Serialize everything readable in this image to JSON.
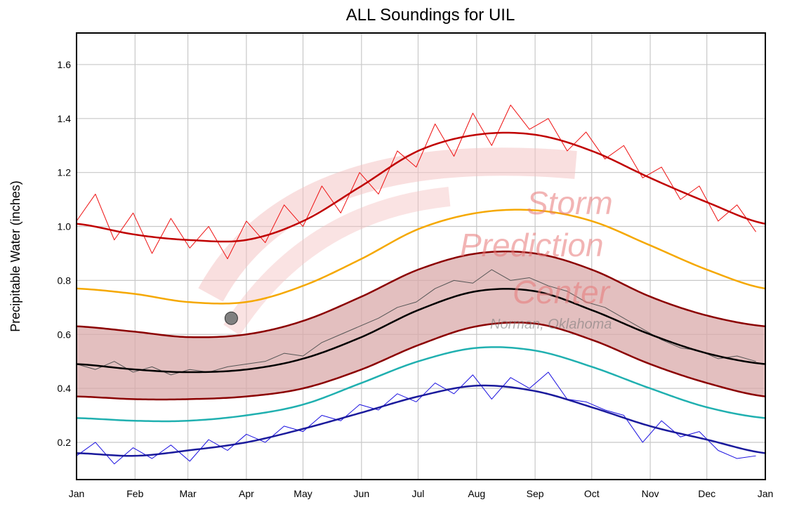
{
  "chart_data": {
    "type": "line",
    "title": "ALL Soundings for UIL",
    "ylabel": "Precipitable Water (inches)",
    "xlabel": "",
    "ylim": [
      0.062,
      1.717
    ],
    "yticks": [
      0.2,
      0.4,
      0.6,
      0.8,
      1.0,
      1.2,
      1.4,
      1.6
    ],
    "ytick_labels": [
      "0.2",
      "0.4",
      "0.6",
      "0.8",
      "1.0",
      "1.2",
      "1.4",
      "1.6"
    ],
    "x_unit": "day of year",
    "xlim": [
      0,
      365
    ],
    "xticks": [
      0,
      31,
      59,
      90,
      120,
      151,
      181,
      212,
      243,
      273,
      304,
      334,
      365
    ],
    "xtick_labels": [
      "Jan",
      "Feb",
      "Mar",
      "Apr",
      "May",
      "Jun",
      "Jul",
      "Aug",
      "Sep",
      "Oct",
      "Nov",
      "Dec",
      "Jan"
    ],
    "grid": true,
    "watermark": {
      "lines": [
        "Storm",
        "Prediction",
        "Center"
      ],
      "sub": "Norman, Oklahoma"
    },
    "smooth_x": [
      0,
      31,
      59,
      90,
      120,
      151,
      181,
      212,
      243,
      273,
      304,
      334,
      365
    ],
    "smooth_series": [
      {
        "key": "max_moving_avg",
        "color": "#c00000",
        "width": 2.5,
        "values": [
          1.01,
          0.97,
          0.95,
          0.95,
          1.02,
          1.15,
          1.28,
          1.34,
          1.34,
          1.28,
          1.18,
          1.09,
          1.01
        ]
      },
      {
        "key": "upper_percentile",
        "color": "#f5a800",
        "width": 2.5,
        "values": [
          0.77,
          0.75,
          0.72,
          0.72,
          0.78,
          0.88,
          0.99,
          1.05,
          1.06,
          1.02,
          0.93,
          0.84,
          0.77
        ]
      },
      {
        "key": "band_upper",
        "color": "#8b0000",
        "width": 2.5,
        "values": [
          0.63,
          0.61,
          0.59,
          0.6,
          0.65,
          0.74,
          0.84,
          0.9,
          0.9,
          0.84,
          0.74,
          0.67,
          0.63
        ]
      },
      {
        "key": "mean",
        "color": "#000000",
        "width": 2.5,
        "values": [
          0.49,
          0.47,
          0.46,
          0.47,
          0.51,
          0.59,
          0.69,
          0.76,
          0.76,
          0.69,
          0.6,
          0.53,
          0.49
        ]
      },
      {
        "key": "band_lower",
        "color": "#8b0000",
        "width": 2.5,
        "values": [
          0.37,
          0.36,
          0.36,
          0.37,
          0.4,
          0.47,
          0.56,
          0.63,
          0.64,
          0.58,
          0.49,
          0.42,
          0.37
        ]
      },
      {
        "key": "lower_percentile",
        "color": "#20b0b0",
        "width": 2.5,
        "values": [
          0.29,
          0.28,
          0.28,
          0.3,
          0.34,
          0.42,
          0.5,
          0.55,
          0.54,
          0.48,
          0.4,
          0.33,
          0.29
        ]
      },
      {
        "key": "min_moving_avg",
        "color": "#1a1a9c",
        "width": 2.5,
        "values": [
          0.16,
          0.15,
          0.17,
          0.2,
          0.25,
          0.31,
          0.37,
          0.41,
          0.39,
          0.33,
          0.26,
          0.21,
          0.16
        ]
      }
    ],
    "band_fill": "#d9aaaa",
    "raw_x": [
      0,
      10,
      20,
      30,
      40,
      50,
      60,
      70,
      80,
      90,
      100,
      110,
      120,
      130,
      140,
      150,
      160,
      170,
      180,
      190,
      200,
      210,
      220,
      230,
      240,
      250,
      260,
      270,
      280,
      290,
      300,
      310,
      320,
      330,
      340,
      350,
      360
    ],
    "raw_series": [
      {
        "key": "daily_max",
        "color": "#ee1111",
        "width": 1,
        "values": [
          1.02,
          1.12,
          0.95,
          1.05,
          0.9,
          1.03,
          0.92,
          1.0,
          0.88,
          1.02,
          0.94,
          1.08,
          1.0,
          1.15,
          1.05,
          1.2,
          1.12,
          1.28,
          1.22,
          1.38,
          1.26,
          1.42,
          1.3,
          1.45,
          1.36,
          1.4,
          1.28,
          1.35,
          1.25,
          1.3,
          1.18,
          1.22,
          1.1,
          1.15,
          1.02,
          1.08,
          0.98
        ]
      },
      {
        "key": "daily_mean",
        "color": "#555555",
        "width": 1,
        "values": [
          0.49,
          0.47,
          0.5,
          0.46,
          0.48,
          0.45,
          0.47,
          0.46,
          0.48,
          0.49,
          0.5,
          0.53,
          0.52,
          0.57,
          0.6,
          0.63,
          0.66,
          0.7,
          0.72,
          0.77,
          0.8,
          0.79,
          0.84,
          0.8,
          0.81,
          0.78,
          0.76,
          0.72,
          0.7,
          0.66,
          0.62,
          0.58,
          0.55,
          0.54,
          0.51,
          0.52,
          0.5
        ]
      },
      {
        "key": "daily_min",
        "color": "#1a10e0",
        "width": 1,
        "values": [
          0.15,
          0.2,
          0.12,
          0.18,
          0.14,
          0.19,
          0.13,
          0.21,
          0.17,
          0.23,
          0.2,
          0.26,
          0.24,
          0.3,
          0.28,
          0.34,
          0.32,
          0.38,
          0.35,
          0.42,
          0.38,
          0.45,
          0.36,
          0.44,
          0.4,
          0.46,
          0.36,
          0.35,
          0.32,
          0.3,
          0.2,
          0.28,
          0.22,
          0.24,
          0.17,
          0.14,
          0.15
        ]
      }
    ],
    "current_point": {
      "x": 82,
      "y": 0.66,
      "color": "#808080"
    }
  }
}
